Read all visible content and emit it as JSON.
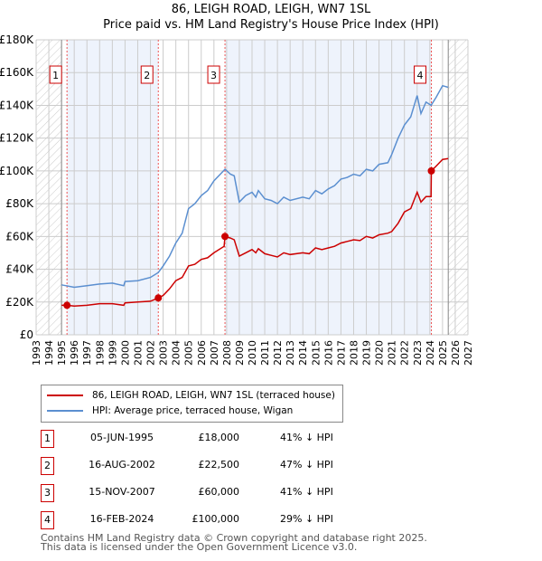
{
  "title": "86, LEIGH ROAD, LEIGH, WN7 1SL",
  "subtitle": "Price paid vs. HM Land Registry's House Price Index (HPI)",
  "colors": {
    "property": "#cc0000",
    "hpi": "#5b8fd0",
    "shade": "#eef3fc"
  },
  "chart_data": {
    "type": "line",
    "xlim": [
      1993,
      2027
    ],
    "ylim": [
      0,
      180000
    ],
    "x_ticks": [
      "1993",
      "1994",
      "1995",
      "1996",
      "1997",
      "1998",
      "1999",
      "2000",
      "2001",
      "2002",
      "2003",
      "2004",
      "2005",
      "2006",
      "2007",
      "2008",
      "2009",
      "2010",
      "2011",
      "2012",
      "2013",
      "2014",
      "2015",
      "2016",
      "2017",
      "2018",
      "2019",
      "2020",
      "2021",
      "2022",
      "2023",
      "2024",
      "2025",
      "2026",
      "2027"
    ],
    "y_ticks": [
      {
        "v": 0,
        "label": "£0"
      },
      {
        "v": 20000,
        "label": "£20K"
      },
      {
        "v": 40000,
        "label": "£40K"
      },
      {
        "v": 60000,
        "label": "£60K"
      },
      {
        "v": 80000,
        "label": "£80K"
      },
      {
        "v": 100000,
        "label": "£100K"
      },
      {
        "v": 120000,
        "label": "£120K"
      },
      {
        "v": 140000,
        "label": "£140K"
      },
      {
        "v": 160000,
        "label": "£160K"
      },
      {
        "v": 180000,
        "label": "£180K"
      }
    ],
    "data_range": [
      1995.0,
      2025.45
    ],
    "series": [
      {
        "name": "86, LEIGH ROAD, LEIGH, WN7 1SL (terraced house)",
        "color": "#cc0000",
        "x": [
          1995,
          1995.43,
          1996,
          1997,
          1998,
          1999,
          1999.9,
          2000,
          2001,
          2002,
          2002.62,
          2003,
          2003.5,
          2004,
          2004.5,
          2005,
          2005.5,
          2006,
          2006.5,
          2007,
          2007.8,
          2007.87,
          2008.3,
          2008.6,
          2009,
          2009.5,
          2010,
          2010.3,
          2010.5,
          2011,
          2011.5,
          2012,
          2012.5,
          2013,
          2014,
          2014.5,
          2015,
          2015.5,
          2016,
          2016.5,
          2017,
          2017.5,
          2018,
          2018.5,
          2019,
          2019.5,
          2020,
          2020.7,
          2021,
          2021.5,
          2022,
          2022.5,
          2023,
          2023.3,
          2023.7,
          2024.1,
          2024.12,
          2024.5,
          2025,
          2025.45
        ],
        "y": [
          18000,
          18000,
          17500,
          18000,
          19000,
          19000,
          18000,
          19500,
          20000,
          20500,
          22500,
          24000,
          28000,
          33000,
          35000,
          42000,
          43000,
          46000,
          47000,
          50000,
          54000,
          60000,
          59000,
          58000,
          48000,
          50000,
          52000,
          50000,
          52500,
          49500,
          48500,
          47500,
          50000,
          49000,
          50000,
          49500,
          53000,
          52000,
          53000,
          54000,
          56000,
          57000,
          58000,
          57500,
          60000,
          59000,
          61000,
          62000,
          63000,
          68000,
          75000,
          77000,
          87000,
          81000,
          84300,
          84300,
          100000,
          103000,
          107000,
          107500
        ]
      },
      {
        "name": "HPI: Average price, terraced house, Wigan",
        "color": "#5b8fd0",
        "x": [
          1995,
          1996,
          1997,
          1998,
          1999,
          1999.9,
          2000,
          2001,
          2002,
          2002.62,
          2003,
          2003.5,
          2004,
          2004.5,
          2005,
          2005.5,
          2006,
          2006.5,
          2007,
          2007.5,
          2007.87,
          2008.3,
          2008.6,
          2009,
          2009.5,
          2010,
          2010.3,
          2010.5,
          2011,
          2011.5,
          2012,
          2012.5,
          2013,
          2014,
          2014.5,
          2015,
          2015.5,
          2016,
          2016.5,
          2017,
          2017.5,
          2018,
          2018.5,
          2019,
          2019.5,
          2020,
          2020.7,
          2021,
          2021.5,
          2022,
          2022.5,
          2023,
          2023.3,
          2023.7,
          2024.1,
          2024.5,
          2025,
          2025.45
        ],
        "y": [
          30500,
          29000,
          30000,
          31000,
          31500,
          30000,
          32500,
          33000,
          35000,
          38000,
          42000,
          48000,
          56000,
          62000,
          77000,
          80000,
          85000,
          88000,
          94000,
          98000,
          101000,
          98000,
          97000,
          81000,
          85000,
          87000,
          84000,
          88000,
          83000,
          82000,
          80000,
          84000,
          82000,
          84000,
          83000,
          88000,
          86000,
          89000,
          91000,
          95000,
          96000,
          98000,
          97000,
          101000,
          100000,
          104000,
          105000,
          110000,
          120000,
          128000,
          133000,
          146000,
          135000,
          142000,
          140000,
          145000,
          152000,
          151000
        ]
      }
    ],
    "sales": [
      {
        "n": "1",
        "x": 1995.43,
        "y": 18000,
        "date": "05-JUN-1995",
        "price": "£18,000",
        "hpi": "41% ↓ HPI"
      },
      {
        "n": "2",
        "x": 2002.62,
        "y": 22500,
        "date": "16-AUG-2002",
        "price": "£22,500",
        "hpi": "47% ↓ HPI"
      },
      {
        "n": "3",
        "x": 2007.87,
        "y": 60000,
        "date": "15-NOV-2007",
        "price": "£60,000",
        "hpi": "41% ↓ HPI"
      },
      {
        "n": "4",
        "x": 2024.12,
        "y": 100000,
        "date": "16-FEB-2024",
        "price": "£100,000",
        "hpi": "29% ↓ HPI"
      }
    ]
  },
  "legend": {
    "property": "86, LEIGH ROAD, LEIGH, WN7 1SL (terraced house)",
    "hpi": "HPI: Average price, terraced house, Wigan"
  },
  "footer": {
    "line1": "Contains HM Land Registry data © Crown copyright and database right 2025.",
    "line2": "This data is licensed under the Open Government Licence v3.0."
  }
}
